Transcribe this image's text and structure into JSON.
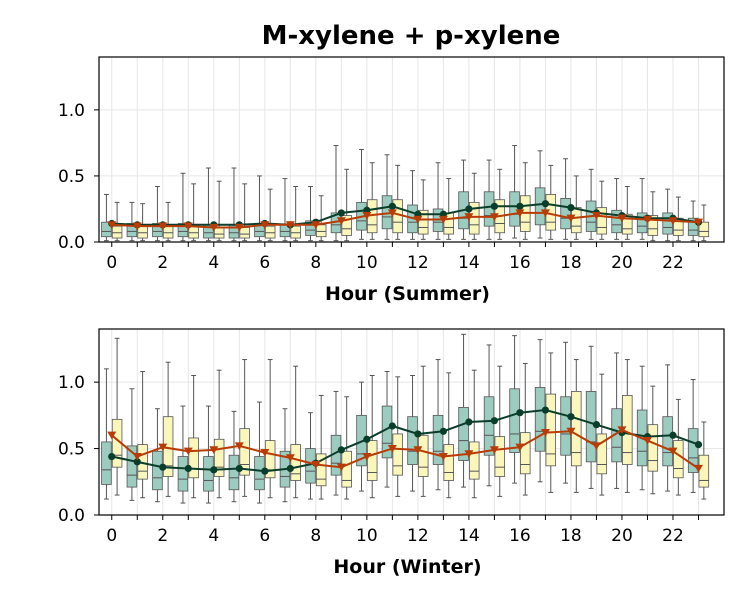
{
  "title": "M-xylene + p-xylene",
  "colors": {
    "box_a": "#9ccbc0",
    "box_b": "#faf6bc",
    "line_a": "#0b3d2b",
    "line_b": "#b83c05",
    "grid": "#e6e6e6"
  },
  "chart_data": [
    {
      "type": "box",
      "xlabel": "Hour (Summer)",
      "ylabel": "",
      "ylim": [
        0,
        1.4
      ],
      "yticks": [
        "0.0",
        "0.5",
        "1.0"
      ],
      "xticks": [
        "0",
        "2",
        "4",
        "6",
        "8",
        "10",
        "12",
        "14",
        "16",
        "18",
        "20",
        "22"
      ],
      "hours": [
        0,
        1,
        2,
        3,
        4,
        5,
        6,
        7,
        8,
        9,
        10,
        11,
        12,
        13,
        14,
        15,
        16,
        17,
        18,
        19,
        20,
        21,
        22,
        23
      ],
      "grid": true,
      "series": [
        {
          "style": "circle",
          "box_color": "box_a",
          "line_color": "line_a",
          "mean": [
            0.14,
            0.13,
            0.13,
            0.13,
            0.13,
            0.13,
            0.14,
            0.13,
            0.15,
            0.22,
            0.24,
            0.27,
            0.21,
            0.21,
            0.25,
            0.27,
            0.27,
            0.29,
            0.26,
            0.22,
            0.2,
            0.18,
            0.18,
            0.15
          ],
          "q1": [
            0.04,
            0.04,
            0.04,
            0.04,
            0.03,
            0.03,
            0.04,
            0.04,
            0.05,
            0.07,
            0.09,
            0.1,
            0.07,
            0.08,
            0.1,
            0.12,
            0.12,
            0.13,
            0.1,
            0.08,
            0.07,
            0.07,
            0.06,
            0.05
          ],
          "median": [
            0.08,
            0.08,
            0.08,
            0.08,
            0.07,
            0.07,
            0.08,
            0.08,
            0.09,
            0.13,
            0.16,
            0.19,
            0.15,
            0.15,
            0.18,
            0.2,
            0.21,
            0.22,
            0.18,
            0.15,
            0.13,
            0.12,
            0.11,
            0.09
          ],
          "q3": [
            0.15,
            0.14,
            0.14,
            0.14,
            0.13,
            0.13,
            0.14,
            0.13,
            0.16,
            0.22,
            0.3,
            0.35,
            0.28,
            0.25,
            0.38,
            0.38,
            0.38,
            0.41,
            0.33,
            0.31,
            0.24,
            0.22,
            0.22,
            0.18
          ],
          "lower": [
            0.01,
            0.01,
            0.01,
            0.01,
            0.01,
            0.01,
            0.01,
            0.01,
            0.01,
            0.01,
            0.02,
            0.02,
            0.02,
            0.02,
            0.02,
            0.02,
            0.03,
            0.03,
            0.02,
            0.02,
            0.02,
            0.02,
            0.01,
            0.01
          ],
          "upper": [
            0.36,
            0.3,
            0.42,
            0.52,
            0.56,
            0.56,
            0.5,
            0.48,
            0.42,
            0.73,
            0.7,
            0.66,
            0.54,
            0.6,
            0.62,
            0.62,
            0.73,
            0.69,
            0.63,
            0.55,
            0.48,
            0.48,
            0.4,
            0.31
          ]
        },
        {
          "style": "triangle",
          "box_color": "box_b",
          "line_color": "line_b",
          "mean": [
            0.13,
            0.12,
            0.12,
            0.12,
            0.11,
            0.11,
            0.13,
            0.13,
            0.13,
            0.16,
            0.2,
            0.22,
            0.17,
            0.17,
            0.19,
            0.19,
            0.22,
            0.22,
            0.18,
            0.2,
            0.18,
            0.17,
            0.16,
            0.15
          ],
          "q1": [
            0.03,
            0.03,
            0.03,
            0.03,
            0.03,
            0.03,
            0.03,
            0.03,
            0.04,
            0.05,
            0.07,
            0.07,
            0.06,
            0.06,
            0.06,
            0.07,
            0.08,
            0.09,
            0.07,
            0.06,
            0.06,
            0.05,
            0.05,
            0.04
          ],
          "median": [
            0.07,
            0.07,
            0.07,
            0.07,
            0.06,
            0.06,
            0.07,
            0.07,
            0.08,
            0.1,
            0.13,
            0.15,
            0.11,
            0.11,
            0.13,
            0.14,
            0.15,
            0.15,
            0.12,
            0.11,
            0.1,
            0.1,
            0.09,
            0.08
          ],
          "q3": [
            0.12,
            0.12,
            0.12,
            0.12,
            0.11,
            0.11,
            0.12,
            0.12,
            0.13,
            0.2,
            0.32,
            0.32,
            0.24,
            0.22,
            0.3,
            0.32,
            0.35,
            0.36,
            0.26,
            0.26,
            0.21,
            0.2,
            0.18,
            0.15
          ],
          "lower": [
            0.01,
            0.01,
            0.01,
            0.01,
            0.01,
            0.01,
            0.01,
            0.01,
            0.01,
            0.01,
            0.02,
            0.02,
            0.02,
            0.02,
            0.02,
            0.02,
            0.02,
            0.02,
            0.02,
            0.02,
            0.02,
            0.01,
            0.01,
            0.01
          ],
          "upper": [
            0.3,
            0.29,
            0.3,
            0.44,
            0.46,
            0.44,
            0.4,
            0.42,
            0.35,
            0.55,
            0.6,
            0.58,
            0.47,
            0.48,
            0.52,
            0.55,
            0.6,
            0.58,
            0.5,
            0.46,
            0.42,
            0.38,
            0.34,
            0.28
          ]
        }
      ]
    },
    {
      "type": "box",
      "xlabel": "Hour (Winter)",
      "ylabel": "",
      "ylim": [
        0,
        1.4
      ],
      "yticks": [
        "0.0",
        "0.5",
        "1.0"
      ],
      "xticks": [
        "0",
        "2",
        "4",
        "6",
        "8",
        "10",
        "12",
        "14",
        "16",
        "18",
        "20",
        "22"
      ],
      "hours": [
        0,
        1,
        2,
        3,
        4,
        5,
        6,
        7,
        8,
        9,
        10,
        11,
        12,
        13,
        14,
        15,
        16,
        17,
        18,
        19,
        20,
        21,
        22,
        23
      ],
      "grid": true,
      "series": [
        {
          "style": "circle",
          "box_color": "box_a",
          "line_color": "line_a",
          "mean": [
            0.44,
            0.4,
            0.36,
            0.35,
            0.34,
            0.35,
            0.33,
            0.35,
            0.39,
            0.49,
            0.57,
            0.67,
            0.61,
            0.63,
            0.7,
            0.71,
            0.77,
            0.79,
            0.74,
            0.68,
            0.62,
            0.59,
            0.6,
            0.53
          ],
          "q1": [
            0.23,
            0.21,
            0.19,
            0.18,
            0.18,
            0.19,
            0.19,
            0.21,
            0.24,
            0.3,
            0.37,
            0.43,
            0.38,
            0.38,
            0.41,
            0.45,
            0.47,
            0.48,
            0.45,
            0.4,
            0.4,
            0.37,
            0.37,
            0.32
          ],
          "median": [
            0.34,
            0.3,
            0.28,
            0.27,
            0.26,
            0.28,
            0.27,
            0.29,
            0.33,
            0.39,
            0.46,
            0.54,
            0.48,
            0.48,
            0.56,
            0.6,
            0.61,
            0.63,
            0.61,
            0.55,
            0.51,
            0.48,
            0.47,
            0.43
          ],
          "q3": [
            0.55,
            0.52,
            0.48,
            0.44,
            0.44,
            0.45,
            0.44,
            0.48,
            0.5,
            0.6,
            0.75,
            0.82,
            0.74,
            0.75,
            0.81,
            0.89,
            0.95,
            0.96,
            0.89,
            0.93,
            0.8,
            0.79,
            0.74,
            0.65
          ],
          "lower": [
            0.12,
            0.11,
            0.1,
            0.09,
            0.09,
            0.1,
            0.09,
            0.1,
            0.12,
            0.15,
            0.18,
            0.21,
            0.18,
            0.19,
            0.21,
            0.22,
            0.24,
            0.25,
            0.24,
            0.2,
            0.2,
            0.19,
            0.18,
            0.17
          ],
          "upper": [
            1.1,
            0.95,
            0.8,
            0.82,
            0.82,
            0.78,
            0.85,
            0.8,
            0.77,
            0.93,
            1.0,
            1.08,
            1.05,
            1.17,
            1.36,
            1.28,
            1.35,
            1.32,
            1.3,
            1.27,
            1.22,
            1.12,
            1.13,
            1.02
          ]
        },
        {
          "style": "triangle",
          "box_color": "box_b",
          "line_color": "line_b",
          "mean": [
            0.6,
            0.44,
            0.51,
            0.48,
            0.49,
            0.52,
            0.47,
            0.43,
            0.38,
            0.36,
            0.44,
            0.5,
            0.49,
            0.44,
            0.46,
            0.49,
            0.51,
            0.62,
            0.63,
            0.52,
            0.64,
            0.56,
            0.48,
            0.35
          ],
          "q1": [
            0.36,
            0.27,
            0.29,
            0.28,
            0.29,
            0.3,
            0.28,
            0.26,
            0.22,
            0.21,
            0.26,
            0.3,
            0.29,
            0.26,
            0.27,
            0.29,
            0.31,
            0.37,
            0.37,
            0.31,
            0.38,
            0.33,
            0.28,
            0.21
          ],
          "median": [
            0.45,
            0.33,
            0.37,
            0.35,
            0.36,
            0.38,
            0.34,
            0.31,
            0.27,
            0.26,
            0.32,
            0.37,
            0.36,
            0.32,
            0.33,
            0.36,
            0.38,
            0.46,
            0.47,
            0.38,
            0.47,
            0.41,
            0.35,
            0.26
          ],
          "q3": [
            0.72,
            0.53,
            0.74,
            0.58,
            0.57,
            0.65,
            0.56,
            0.53,
            0.46,
            0.48,
            0.56,
            0.61,
            0.6,
            0.53,
            0.55,
            0.59,
            0.62,
            0.91,
            0.93,
            0.61,
            0.9,
            0.68,
            0.56,
            0.45
          ],
          "lower": [
            0.15,
            0.13,
            0.14,
            0.13,
            0.13,
            0.14,
            0.13,
            0.13,
            0.12,
            0.12,
            0.13,
            0.14,
            0.14,
            0.13,
            0.13,
            0.14,
            0.15,
            0.17,
            0.17,
            0.15,
            0.17,
            0.16,
            0.15,
            0.12
          ],
          "upper": [
            1.33,
            1.08,
            1.15,
            1.05,
            1.09,
            1.17,
            1.17,
            1.12,
            0.9,
            0.89,
            1.05,
            1.04,
            1.12,
            1.07,
            1.09,
            1.12,
            1.14,
            1.22,
            1.17,
            1.06,
            1.17,
            0.97,
            0.87,
            0.7
          ]
        }
      ]
    }
  ]
}
